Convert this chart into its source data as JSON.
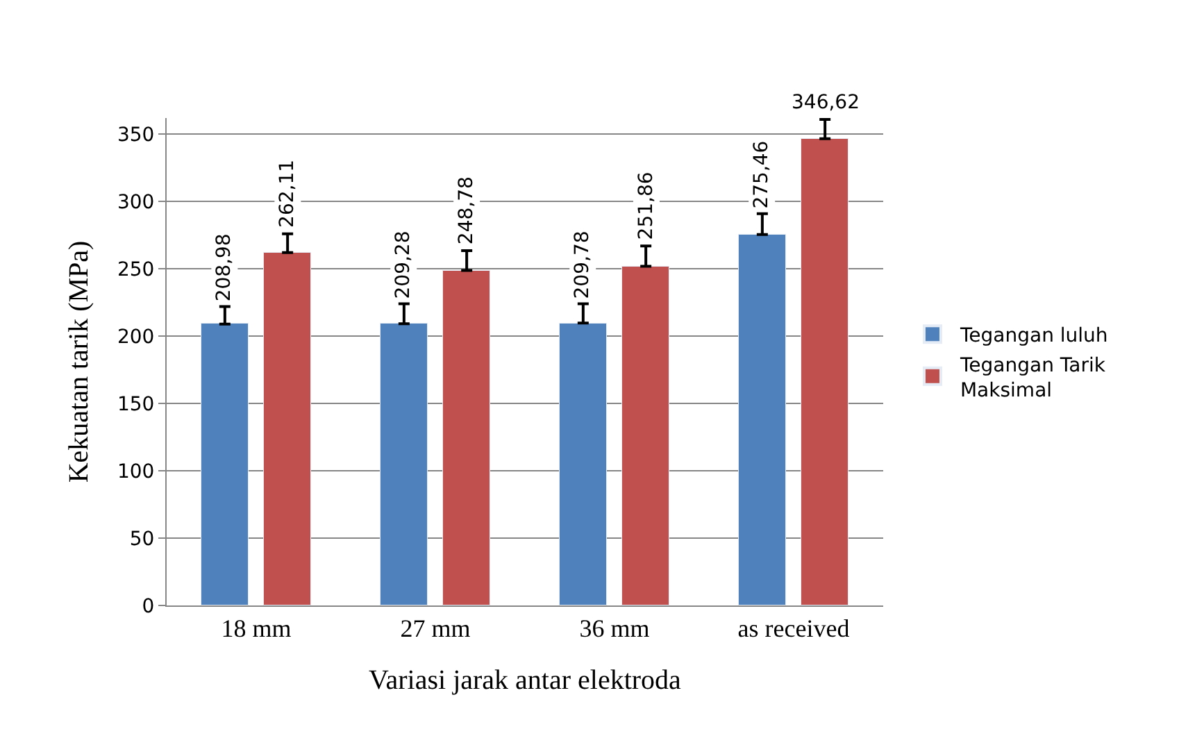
{
  "chart_data": {
    "type": "bar",
    "xlabel": "Variasi jarak antar elektroda",
    "ylabel": "Kekuatan tarik (MPa)",
    "categories": [
      "18 mm",
      "27 mm",
      "36 mm",
      "as received"
    ],
    "series": [
      {
        "name": "Tegangan luluh",
        "color": "#4f81bd",
        "values": [
          208.98,
          209.28,
          209.78,
          275.46
        ],
        "value_labels": [
          "208,98",
          "209,28",
          "209,78",
          "275,46"
        ],
        "errors": [
          [
            208.98,
            222
          ],
          [
            209.28,
            224
          ],
          [
            209.78,
            224
          ],
          [
            275.46,
            291
          ]
        ]
      },
      {
        "name": "Tegangan Tarik Maksimal",
        "color": "#c0504d",
        "values": [
          262.11,
          248.78,
          251.86,
          346.62
        ],
        "value_labels": [
          "262,11",
          "248,78",
          "251,86",
          "346,62"
        ],
        "errors": [
          [
            262.11,
            276
          ],
          [
            248.78,
            263.5
          ],
          [
            251.86,
            267
          ],
          [
            346.62,
            361
          ]
        ]
      }
    ],
    "ylim": [
      0,
      362
    ],
    "yticks": [
      0,
      50,
      100,
      150,
      200,
      250,
      300,
      350
    ],
    "grid": "y",
    "legend": "right"
  }
}
